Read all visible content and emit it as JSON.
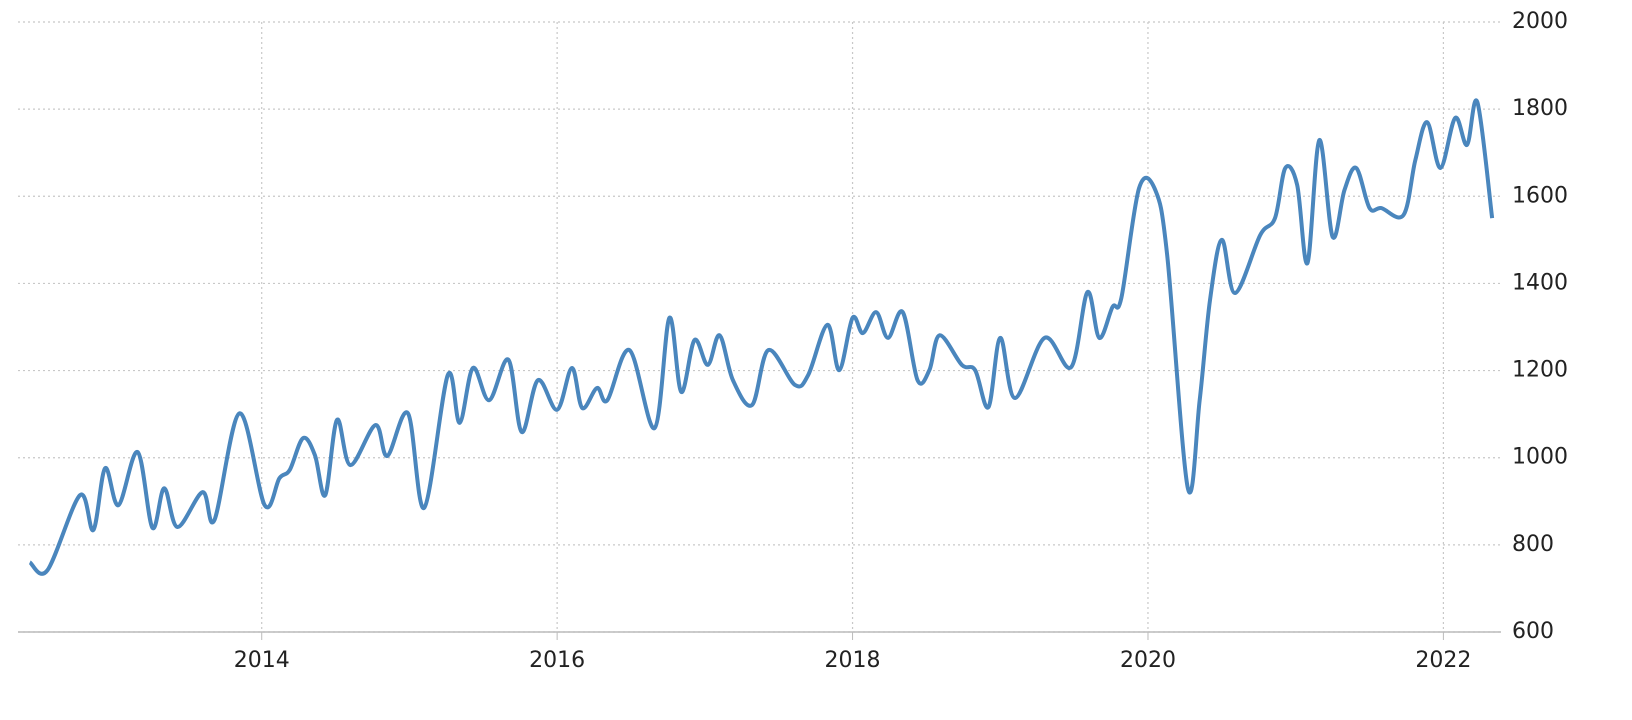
{
  "chart_data": {
    "type": "line",
    "x": [
      2012.43,
      2012.55,
      2012.77,
      2012.86,
      2012.94,
      2013.03,
      2013.16,
      2013.26,
      2013.34,
      2013.43,
      2013.6,
      2013.68,
      2013.85,
      2014.02,
      2014.12,
      2014.19,
      2014.28,
      2014.36,
      2014.43,
      2014.51,
      2014.6,
      2014.77,
      2014.85,
      2014.99,
      2015.1,
      2015.26,
      2015.34,
      2015.43,
      2015.54,
      2015.67,
      2015.76,
      2015.87,
      2016.0,
      2016.1,
      2016.17,
      2016.27,
      2016.34,
      2016.49,
      2016.66,
      2016.76,
      2016.84,
      2016.93,
      2017.02,
      2017.1,
      2017.19,
      2017.32,
      2017.43,
      2017.61,
      2017.7,
      2017.83,
      2017.91,
      2018.0,
      2018.07,
      2018.16,
      2018.24,
      2018.34,
      2018.44,
      2018.52,
      2018.59,
      2018.74,
      2018.83,
      2018.92,
      2019.0,
      2019.1,
      2019.3,
      2019.48,
      2019.59,
      2019.67,
      2019.76,
      2019.82,
      2019.94,
      2020.05,
      2020.13,
      2020.27,
      2020.35,
      2020.42,
      2020.5,
      2020.59,
      2020.76,
      2020.86,
      2020.93,
      2021.01,
      2021.08,
      2021.16,
      2021.25,
      2021.33,
      2021.41,
      2021.5,
      2021.58,
      2021.73,
      2021.81,
      2021.89,
      2021.98,
      2022.08,
      2022.16,
      2022.23,
      2022.33
    ],
    "values": [
      760,
      742,
      914,
      834,
      976,
      891,
      1013,
      839,
      930,
      841,
      921,
      857,
      1102,
      891,
      953,
      972,
      1045,
      1006,
      914,
      1087,
      983,
      1075,
      1004,
      1102,
      885,
      1190,
      1080,
      1206,
      1132,
      1225,
      1059,
      1178,
      1110,
      1206,
      1114,
      1160,
      1132,
      1247,
      1068,
      1321,
      1151,
      1270,
      1213,
      1281,
      1178,
      1121,
      1247,
      1167,
      1190,
      1305,
      1201,
      1321,
      1286,
      1334,
      1275,
      1334,
      1178,
      1201,
      1281,
      1213,
      1201,
      1116,
      1275,
      1137,
      1275,
      1208,
      1380,
      1275,
      1346,
      1367,
      1619,
      1614,
      1465,
      930,
      1132,
      1362,
      1500,
      1378,
      1511,
      1550,
      1665,
      1626,
      1447,
      1729,
      1507,
      1614,
      1665,
      1573,
      1573,
      1557,
      1683,
      1770,
      1665,
      1780,
      1718,
      1816,
      1550
    ],
    "color": "#4a86bd",
    "xlim": [
      2012.35,
      2022.39
    ],
    "xticks": [
      2014,
      2016,
      2018,
      2020,
      2022
    ],
    "ylim": [
      600,
      2000
    ],
    "yticks": [
      600,
      800,
      1000,
      1200,
      1400,
      1600,
      1800,
      2000
    ],
    "grid": true
  }
}
